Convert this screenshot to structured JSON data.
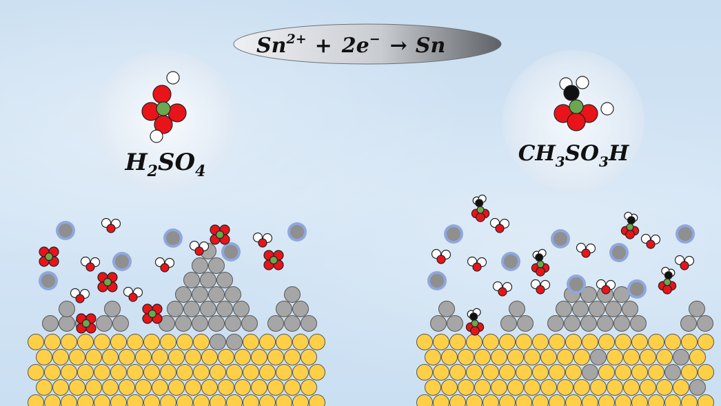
{
  "equation": {
    "ion": "Sn",
    "ion_charge": "2+",
    "plus": "+",
    "electrons_coef": "2e",
    "electron_charge": "−",
    "arrow": "→",
    "product": "Sn"
  },
  "left_label": {
    "parts": [
      {
        "t": "H",
        "sub": "2"
      },
      {
        "t": "SO",
        "sub": "4"
      }
    ]
  },
  "right_label": {
    "parts": [
      {
        "t": "CH",
        "sub": "3"
      },
      {
        "t": "SO",
        "sub": "3"
      },
      {
        "t": "H",
        "sub": ""
      }
    ]
  },
  "colors": {
    "oxygen": "#e8141a",
    "sulfur": "#6aa84f",
    "hydrogen": "#ffffff",
    "carbon": "#111111",
    "sn_ion": "#8f8f8f",
    "sn_ion_ring": "#8fa7dd",
    "sn_deposit": "#a6a6a6",
    "substrate": "#ffd047"
  }
}
